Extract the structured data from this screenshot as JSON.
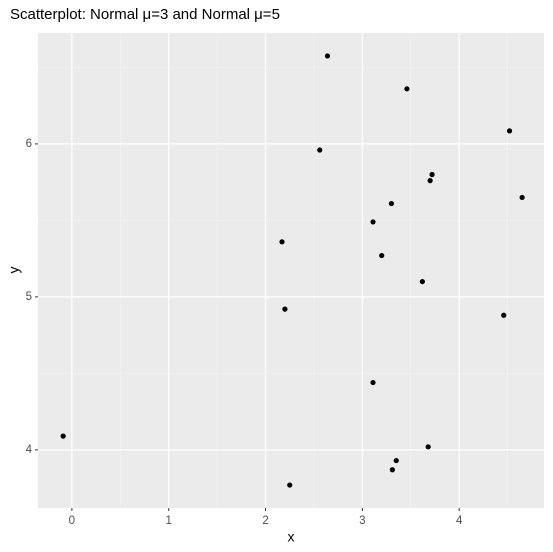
{
  "chart_data": {
    "type": "scatter",
    "title": "Scatterplot: Normal μ=3 and Normal μ=5",
    "x_label": "x",
    "y_label": "y",
    "x": [
      -0.09,
      2.64,
      3.46,
      4.52,
      2.56,
      3.72,
      3.7,
      4.65,
      3.3,
      3.11,
      2.17,
      3.2,
      3.62,
      2.2,
      4.46,
      3.11,
      3.68,
      3.35,
      3.31,
      2.25
    ],
    "values": [
      4.09,
      6.575,
      6.36,
      6.085,
      5.96,
      5.8,
      5.76,
      5.65,
      5.61,
      5.49,
      5.36,
      5.27,
      5.1,
      4.92,
      4.88,
      4.44,
      4.02,
      3.93,
      3.87,
      3.77
    ],
    "color": "#000000",
    "xlim": [
      -0.35,
      4.876
    ],
    "ylim": [
      3.62,
      6.725
    ],
    "xticks": [
      0,
      1,
      2,
      3,
      4
    ],
    "yticks": [
      4,
      5,
      6
    ],
    "x_minor_grid": [
      0.5,
      1.5,
      2.5,
      3.5,
      4.5
    ],
    "y_minor_grid": [
      4.5,
      5.5,
      6.5
    ],
    "grid": true
  }
}
